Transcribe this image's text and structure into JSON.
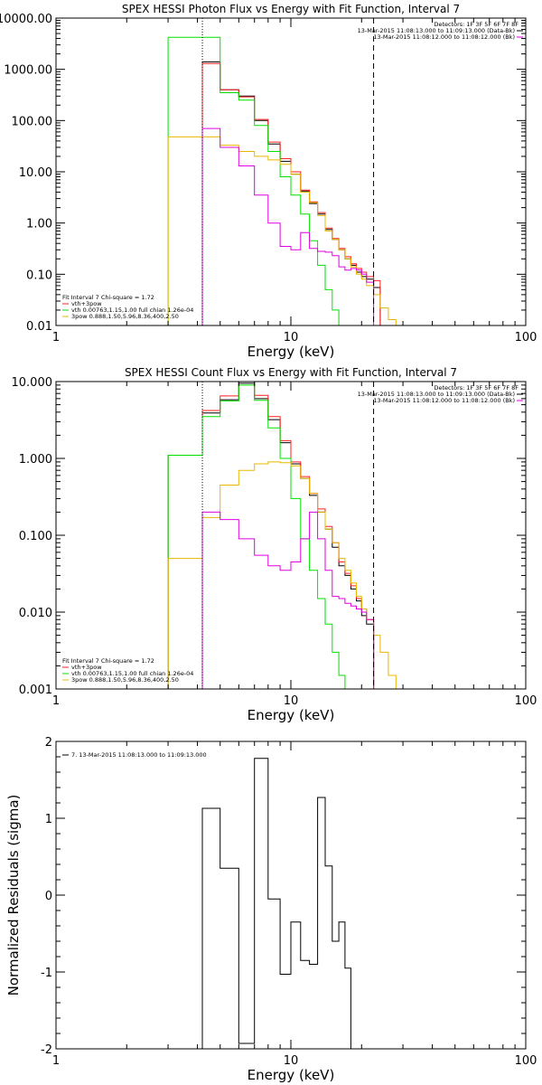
{
  "colors": {
    "black": "#000000",
    "red": "#ff2020",
    "green": "#00e000",
    "magenta": "#e000e0",
    "yellow": "#e8b800"
  },
  "chart_data": [
    {
      "type": "line",
      "title": "SPEX HESSI Photon Flux vs Energy with Fit Function, Interval 7",
      "xlabel": "Energy (keV)",
      "ylabel": "",
      "xscale": "log",
      "yscale": "log",
      "xlim": [
        1,
        100
      ],
      "ylim": [
        0.01,
        10000
      ],
      "xticks": [
        {
          "v": 1,
          "label": "1"
        },
        {
          "v": 10,
          "label": "10"
        },
        {
          "v": 100,
          "label": "100"
        }
      ],
      "yticks": [
        {
          "v": 10000,
          "label": "10000.00"
        },
        {
          "v": 1000,
          "label": "1000.00"
        },
        {
          "v": 100,
          "label": "100.00"
        },
        {
          "v": 10,
          "label": "10.00"
        },
        {
          "v": 1,
          "label": "1.00"
        },
        {
          "v": 0.1,
          "label": "0.10"
        },
        {
          "v": 0.01,
          "label": "0.01"
        }
      ],
      "vlines": [
        {
          "x": 4.2,
          "style": "dotted"
        },
        {
          "x": 22.5,
          "style": "dashed"
        }
      ],
      "info": [
        "Detectors: 1F 3F 5F 6F 7F 8F",
        "13-Mar-2015 11:08:13.000 to 11:09:13.000 (Data-Bk)",
        "13-Mar-2015 11:08:12.000 to 11:08:12.000 (Bk)"
      ],
      "legend": [
        "Fit Interval 7   Chi-square = 1.72",
        "vth+3pow",
        "vth 0.00763,1.15,1.00  full chian 1.26e-04",
        "3pow 0.888,1.50,5.96,8.36,400,2.50"
      ],
      "edges": [
        3,
        4.2,
        5,
        6,
        7,
        8,
        9,
        10,
        11,
        12,
        13,
        14,
        15,
        16,
        17,
        18,
        19,
        20,
        21,
        22.5,
        24,
        26,
        28,
        30
      ],
      "series": [
        {
          "name": "Data",
          "color": "black",
          "values": [
            null,
            1400,
            400,
            300,
            100,
            35,
            16,
            9,
            4.2,
            2.4,
            1.5,
            0.75,
            0.48,
            0.3,
            0.2,
            0.15,
            0.11,
            0.09,
            0.08,
            0.055,
            null,
            null,
            null
          ]
        },
        {
          "name": "vth+3pow",
          "color": "red",
          "values": [
            null,
            1300,
            400,
            290,
            105,
            38,
            18,
            10,
            4.4,
            2.6,
            1.6,
            0.8,
            0.5,
            0.32,
            0.22,
            0.16,
            0.13,
            0.11,
            0.09,
            0.075,
            null,
            null,
            null
          ]
        },
        {
          "name": "vth",
          "color": "green",
          "values": [
            4200,
            4200,
            350,
            250,
            80,
            25,
            8,
            3.5,
            1.5,
            0.45,
            0.15,
            0.05,
            0.02,
            null,
            null,
            null,
            null,
            null,
            null,
            null,
            null,
            null,
            null
          ]
        },
        {
          "name": "3pow",
          "color": "yellow",
          "values": [
            48,
            48,
            33,
            25,
            20,
            17,
            14,
            9,
            4,
            2.5,
            1.4,
            0.7,
            0.48,
            0.3,
            0.2,
            0.14,
            0.1,
            0.08,
            0.06,
            0.04,
            0.022,
            0.013,
            null
          ]
        },
        {
          "name": "magenta",
          "color": "magenta",
          "values": [
            null,
            70,
            30,
            13,
            3.5,
            1.0,
            0.35,
            0.3,
            0.65,
            0.32,
            0.28,
            0.27,
            0.23,
            0.14,
            0.12,
            0.13,
            0.12,
            0.1,
            0.07,
            null,
            null,
            null,
            null
          ]
        }
      ]
    },
    {
      "type": "line",
      "title": "SPEX HESSI Count Flux vs Energy with Fit Function, Interval 7",
      "xlabel": "Energy (keV)",
      "ylabel": "",
      "xscale": "log",
      "yscale": "log",
      "xlim": [
        1,
        100
      ],
      "ylim": [
        0.001,
        10
      ],
      "xticks": [
        {
          "v": 1,
          "label": "1"
        },
        {
          "v": 10,
          "label": "10"
        },
        {
          "v": 100,
          "label": "100"
        }
      ],
      "yticks": [
        {
          "v": 10,
          "label": "10.000"
        },
        {
          "v": 1,
          "label": "1.000"
        },
        {
          "v": 0.1,
          "label": "0.100"
        },
        {
          "v": 0.01,
          "label": "0.010"
        },
        {
          "v": 0.001,
          "label": "0.001"
        }
      ],
      "vlines": [
        {
          "x": 4.2,
          "style": "dotted"
        },
        {
          "x": 22.5,
          "style": "dashed"
        }
      ],
      "info": [
        "Detectors: 1F 3F 5F 6F 7F 8F",
        "13-Mar-2015 11:08:13.000 to 11:09:13.000 (Data-Bk)",
        "13-Mar-2015 11:08:12.000 to 11:08:12.000 (Bk)"
      ],
      "legend": [
        "Fit Interval 7   Chi-square = 1.72",
        "vth+3pow",
        "vth 0.00763,1.15,1.00  full chian 1.26e-04",
        "3pow 0.888,1.50,5.96,8.36,400,2.50"
      ],
      "edges": [
        3,
        4.2,
        5,
        6,
        7,
        8,
        9,
        10,
        11,
        12,
        13,
        14,
        15,
        16,
        17,
        18,
        19,
        20,
        21,
        22.5,
        24,
        26,
        28,
        30
      ],
      "series": [
        {
          "name": "Data",
          "color": "black",
          "values": [
            1.1,
            3.9,
            5.8,
            9.5,
            6.0,
            3.2,
            1.6,
            0.85,
            0.55,
            0.33,
            0.2,
            0.12,
            0.07,
            0.04,
            0.03,
            0.02,
            0.014,
            0.009,
            0.007,
            null,
            null,
            null,
            null
          ]
        },
        {
          "name": "vth+3pow",
          "color": "red",
          "values": [
            1.1,
            4.2,
            6.5,
            10.5,
            6.6,
            3.5,
            1.7,
            0.9,
            0.58,
            0.35,
            0.22,
            0.13,
            0.08,
            0.045,
            0.032,
            0.022,
            0.015,
            0.011,
            0.008,
            null,
            null,
            null,
            null
          ]
        },
        {
          "name": "vth",
          "color": "green",
          "values": [
            1.1,
            3.5,
            5.6,
            9.0,
            5.7,
            2.5,
            1.0,
            0.3,
            0.09,
            0.035,
            0.015,
            0.007,
            0.003,
            0.0015,
            null,
            null,
            null,
            null,
            null,
            null,
            null,
            null,
            null
          ]
        },
        {
          "name": "3pow",
          "color": "yellow",
          "values": [
            0.05,
            0.17,
            0.45,
            0.7,
            0.85,
            0.9,
            0.88,
            0.8,
            0.55,
            0.35,
            0.2,
            0.12,
            0.08,
            0.05,
            0.035,
            0.024,
            0.016,
            0.011,
            0.008,
            0.005,
            0.003,
            0.0015,
            null
          ]
        },
        {
          "name": "magenta",
          "color": "magenta",
          "values": [
            null,
            0.2,
            0.16,
            0.09,
            0.055,
            0.04,
            0.035,
            0.045,
            0.09,
            0.2,
            0.09,
            0.035,
            0.016,
            0.015,
            0.013,
            0.012,
            0.011,
            0.01,
            0.008,
            null,
            null,
            null,
            null
          ]
        }
      ]
    },
    {
      "type": "line",
      "title": "",
      "xlabel": "Energy (keV)",
      "ylabel": "Normalized Residuals (sigma)",
      "xscale": "log",
      "yscale": "linear",
      "xlim": [
        1,
        100
      ],
      "ylim": [
        -2,
        2
      ],
      "xticks": [
        {
          "v": 1,
          "label": "1"
        },
        {
          "v": 10,
          "label": "10"
        },
        {
          "v": 100,
          "label": "100"
        }
      ],
      "yticks": [
        {
          "v": 2,
          "label": "2"
        },
        {
          "v": 1,
          "label": "1"
        },
        {
          "v": 0,
          "label": "0"
        },
        {
          "v": -1,
          "label": "-1"
        },
        {
          "v": -2,
          "label": "-2"
        }
      ],
      "legend": [
        "7. 13-Mar-2015 11:08:13.000 to 11:09:13.000"
      ],
      "edges": [
        4.2,
        5,
        6,
        7,
        8,
        9,
        10,
        11,
        12,
        13,
        14,
        15,
        16,
        17,
        18,
        19,
        20,
        21,
        22.5
      ],
      "series": [
        {
          "name": "Residuals",
          "color": "black",
          "values": [
            1.13,
            0.35,
            -1.93,
            1.78,
            -0.05,
            -1.03,
            -0.35,
            -0.85,
            -0.9,
            1.27,
            0.38,
            -0.6,
            -0.35,
            -0.95,
            null,
            null,
            null,
            null
          ]
        }
      ]
    }
  ]
}
